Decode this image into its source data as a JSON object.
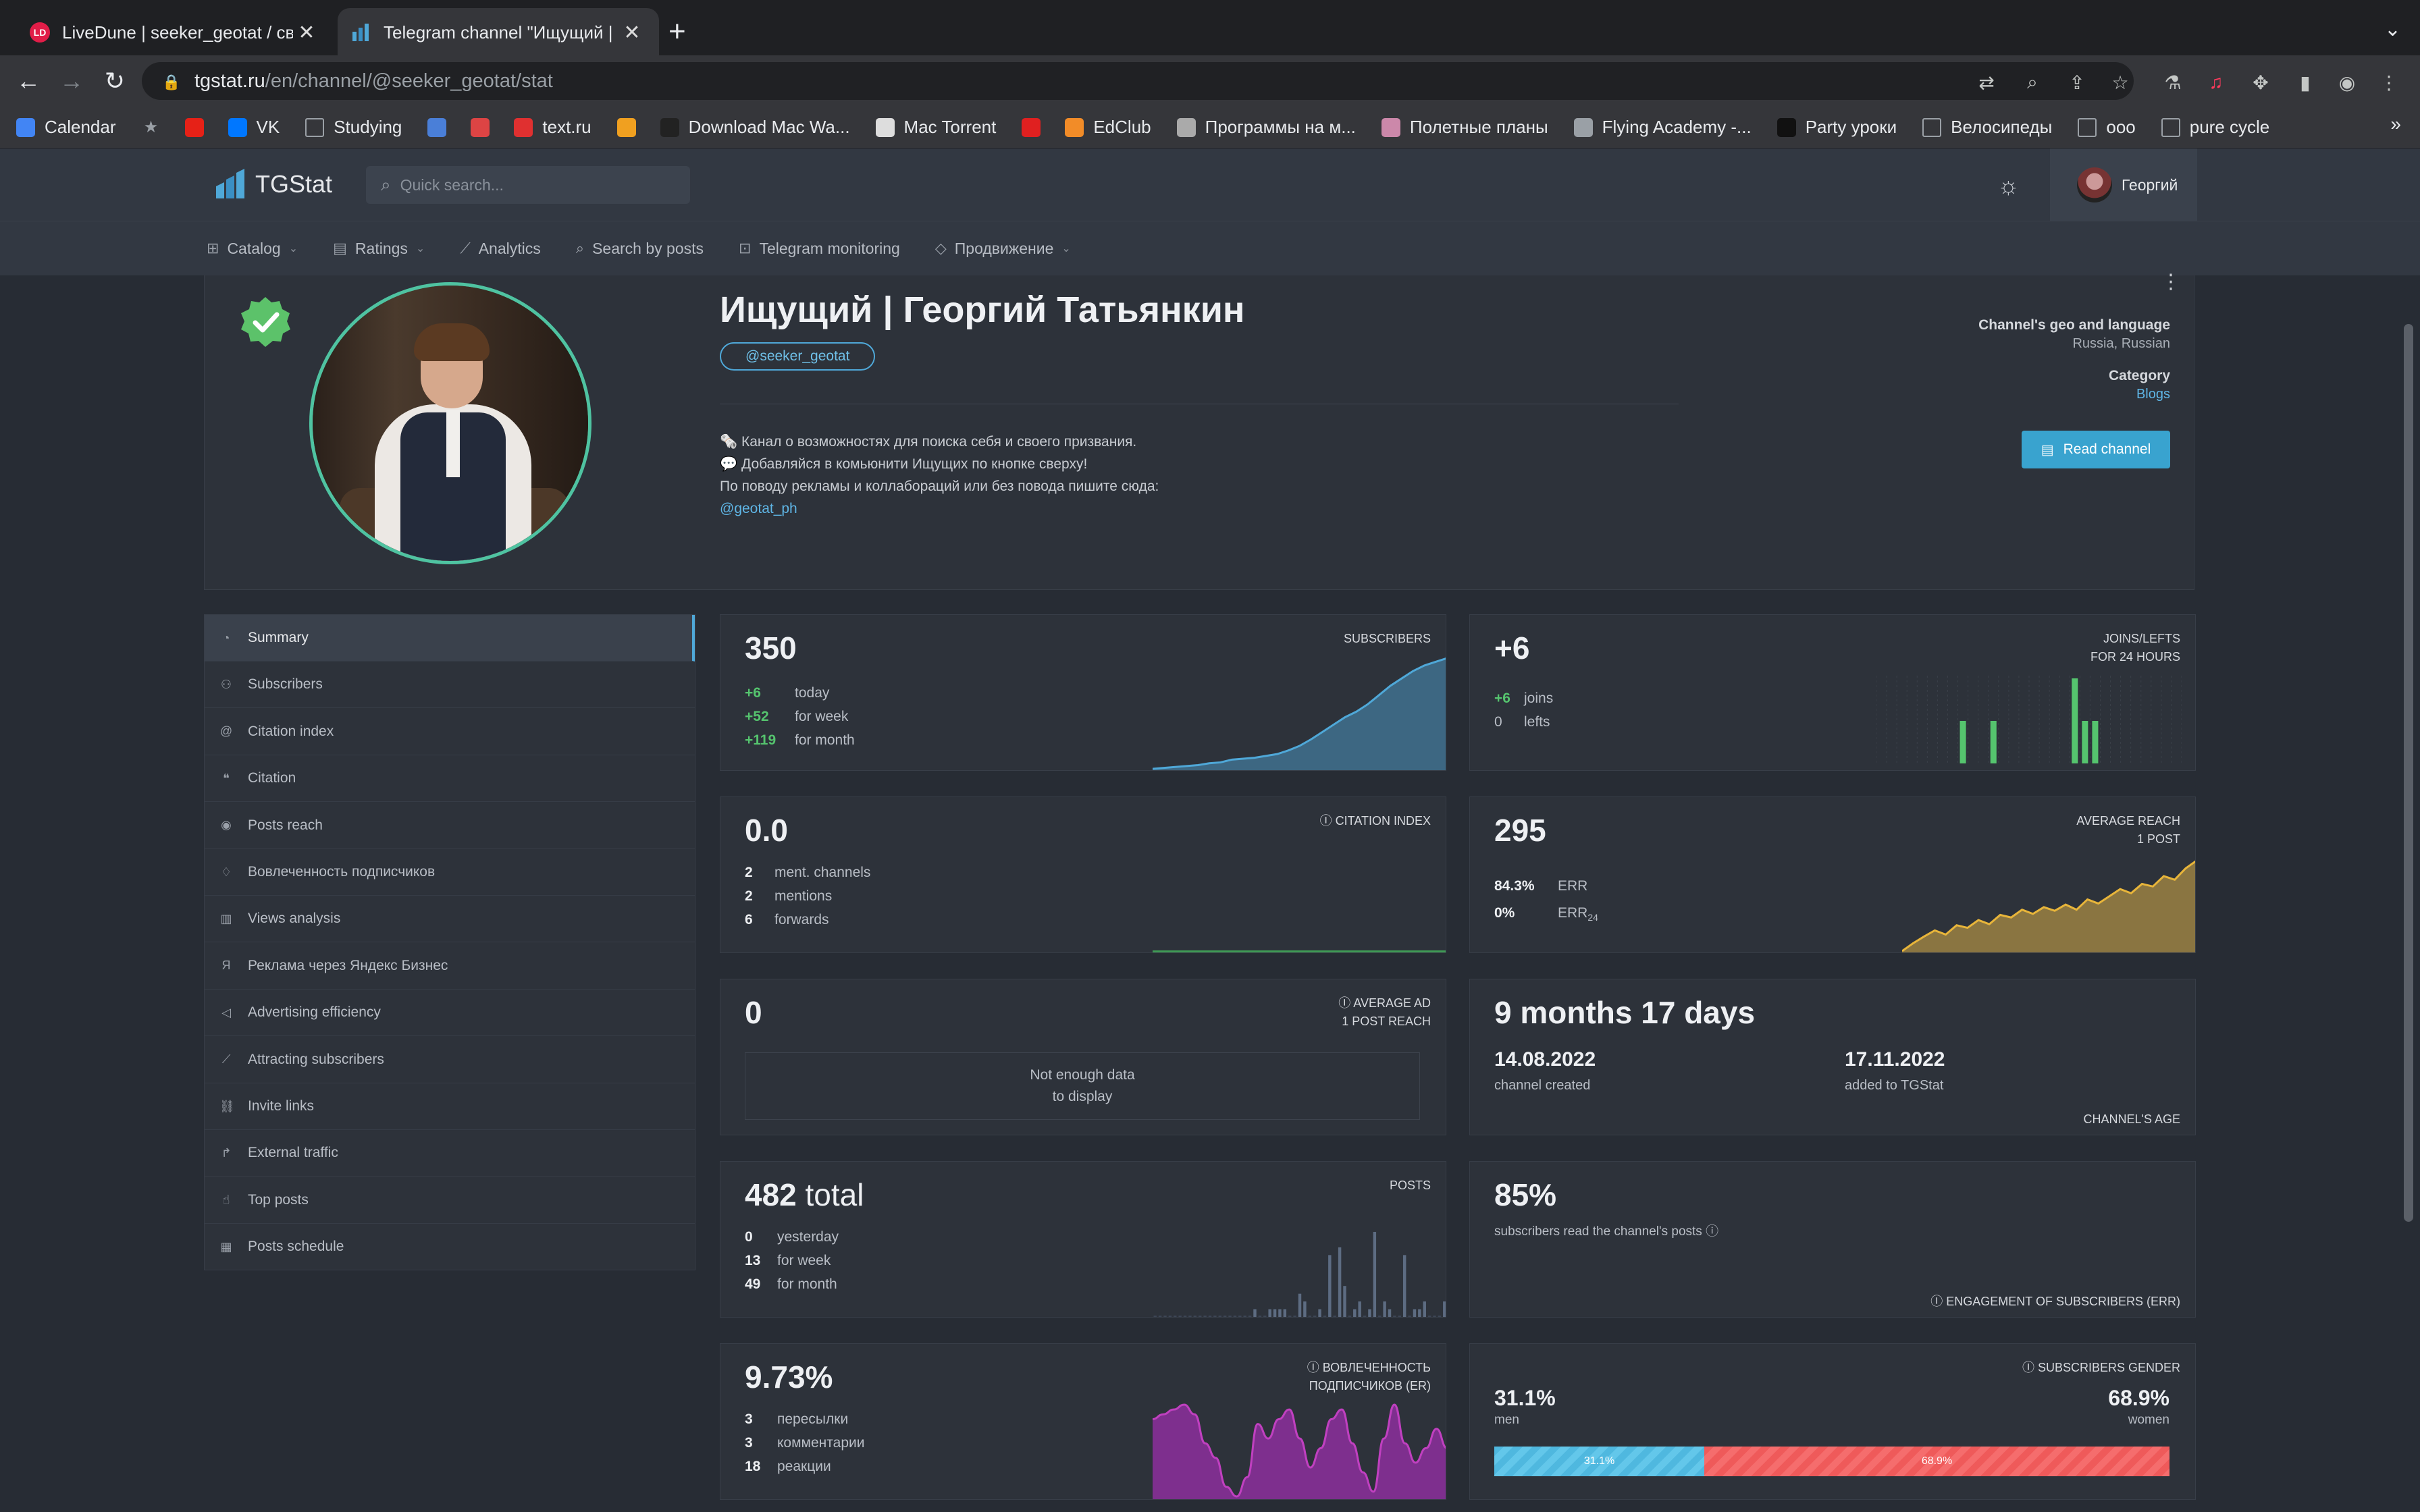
{
  "browser": {
    "tabs": [
      {
        "title": "LiveDune | seeker_geotat / сво...",
        "favicon": "LD",
        "active": false
      },
      {
        "title": "Telegram channel \"Ищущий | Г...",
        "favicon": "tgstat",
        "active": true
      }
    ],
    "url_host": "tgstat.ru",
    "url_path": "/en/channel/@seeker_geotat/stat",
    "bookmarks": [
      {
        "label": "Calendar",
        "icon": "calendar-icon",
        "color": "#4285f4"
      },
      {
        "label": "",
        "icon": "star-icon",
        "color": "#9aa0a6"
      },
      {
        "label": "",
        "icon": "youtube-icon",
        "color": "#e62117"
      },
      {
        "label": "VK",
        "icon": "vk-icon",
        "color": "#0077ff"
      },
      {
        "label": "Studying",
        "icon": "folder-icon",
        "color": "#9aa0a6"
      },
      {
        "label": "",
        "icon": "translate-icon",
        "color": "#4a7fd8"
      },
      {
        "label": "",
        "icon": "app-icon",
        "color": "#d44"
      },
      {
        "label": "text.ru",
        "icon": "textru-icon",
        "color": "#e03030"
      },
      {
        "label": "",
        "icon": "stack-icon",
        "color": "#f0a020"
      },
      {
        "label": "Download Mac Wa...",
        "icon": "download-icon",
        "color": "#222"
      },
      {
        "label": "Mac Torrent",
        "icon": "torrent-icon",
        "color": "#ddd"
      },
      {
        "label": "",
        "icon": "mail-icon",
        "color": "#e02020"
      },
      {
        "label": "EdClub",
        "icon": "edclub-icon",
        "color": "#f28c28"
      },
      {
        "label": "Программы на м...",
        "icon": "skull-icon",
        "color": "#aaa"
      },
      {
        "label": "Полетные планы",
        "icon": "plane-icon",
        "color": "#c8a"
      },
      {
        "label": "Flying Academy -...",
        "icon": "globe-icon",
        "color": "#9aa0a6"
      },
      {
        "label": "Party уроки",
        "icon": "party-icon",
        "color": "#111"
      },
      {
        "label": "Велосипеды",
        "icon": "folder-icon",
        "color": "#9aa0a6"
      },
      {
        "label": "ооо",
        "icon": "folder-icon",
        "color": "#9aa0a6"
      },
      {
        "label": "pure cycle",
        "icon": "folder-icon",
        "color": "#9aa0a6"
      }
    ],
    "more_label": "»"
  },
  "site": {
    "logo": "TGStat",
    "search_placeholder": "Quick search...",
    "user_name": "Георгий",
    "nav": [
      {
        "label": "Catalog",
        "icon": "grid-icon",
        "dropdown": true
      },
      {
        "label": "Ratings",
        "icon": "ratings-icon",
        "dropdown": true
      },
      {
        "label": "Analytics",
        "icon": "analytics-icon",
        "dropdown": false
      },
      {
        "label": "Search by posts",
        "icon": "search-icon",
        "dropdown": false
      },
      {
        "label": "Telegram monitoring",
        "icon": "monitor-icon",
        "dropdown": false
      },
      {
        "label": "Продвижение",
        "icon": "promo-icon",
        "dropdown": true
      }
    ]
  },
  "channel": {
    "title": "Ищущий | Георгий Татьянкин",
    "handle": "@seeker_geotat",
    "description": [
      "🗞️ Канал о возможностях для поиска себя и своего призвания.",
      "💬 Добавляйся в комьюнити Ищущих по кнопке сверху!",
      "По поводу рекламы и коллабораций или без повода пишите сюда:"
    ],
    "contact": "@geotat_ph",
    "geo_label": "Channel's geo and language",
    "geo_value": "Russia, Russian",
    "category_label": "Category",
    "category_value": "Blogs",
    "read_button": "Read channel"
  },
  "sidebar": [
    {
      "label": "Summary",
      "icon": "summary-icon",
      "active": true
    },
    {
      "label": "Subscribers",
      "icon": "users-icon"
    },
    {
      "label": "Citation index",
      "icon": "at-icon"
    },
    {
      "label": "Citation",
      "icon": "quote-icon"
    },
    {
      "label": "Posts reach",
      "icon": "eye-icon"
    },
    {
      "label": "Вовлеченность подписчиков",
      "icon": "engagement-icon"
    },
    {
      "label": "Views analysis",
      "icon": "bar-chart-icon"
    },
    {
      "label": "Реклама через Яндекс Бизнес",
      "icon": "yandex-icon"
    },
    {
      "label": "Advertising efficiency",
      "icon": "megaphone-icon"
    },
    {
      "label": "Attracting subscribers",
      "icon": "trend-icon"
    },
    {
      "label": "Invite links",
      "icon": "link-icon"
    },
    {
      "label": "External traffic",
      "icon": "share-icon"
    },
    {
      "label": "Top posts",
      "icon": "thumb-icon"
    },
    {
      "label": "Posts schedule",
      "icon": "calendar-icon"
    }
  ],
  "stats": {
    "subscribers": {
      "value": "350",
      "label": "SUBSCRIBERS",
      "rows": [
        {
          "n": "+6",
          "t": "today"
        },
        {
          "n": "+52",
          "t": "for week"
        },
        {
          "n": "+119",
          "t": "for month"
        }
      ],
      "spark": [
        230,
        231,
        232,
        233,
        234,
        236,
        237,
        240,
        241,
        242,
        244,
        246,
        250,
        255,
        262,
        270,
        278,
        286,
        292,
        300,
        310,
        320,
        328,
        336,
        342,
        346,
        350
      ]
    },
    "joins": {
      "value": "+6",
      "label1": "JOINS/LEFTS",
      "label2": "FOR 24 HOURS",
      "rows": [
        {
          "n": "+6",
          "t": "joins"
        },
        {
          "n": "0",
          "t": "lefts"
        }
      ],
      "bars": [
        0,
        0,
        0,
        0,
        0,
        0,
        0,
        0,
        1,
        0,
        0,
        1,
        0,
        0,
        0,
        0,
        0,
        0,
        0,
        2,
        1,
        1,
        0,
        0,
        0,
        0,
        0,
        0,
        0,
        0
      ]
    },
    "citation": {
      "value": "0.0",
      "label": "CITATION INDEX",
      "rows": [
        {
          "n": "2",
          "t": "ment. channels"
        },
        {
          "n": "2",
          "t": "mentions"
        },
        {
          "n": "6",
          "t": "forwards"
        }
      ]
    },
    "reach": {
      "value": "295",
      "label1": "AVERAGE REACH",
      "label2": "1 POST",
      "rows": [
        {
          "n": "84.3%",
          "t": "ERR"
        },
        {
          "n": "0%",
          "t": "ERR",
          "sub": "24"
        }
      ],
      "spark": [
        120,
        135,
        148,
        160,
        152,
        170,
        165,
        180,
        172,
        190,
        185,
        200,
        192,
        205,
        198,
        210,
        200,
        220,
        212,
        226,
        240,
        232,
        250,
        245,
        265,
        258,
        280,
        295
      ]
    },
    "avg_ad": {
      "value": "0",
      "label1": "AVERAGE AD",
      "label2": "1 POST REACH",
      "nodata1": "Not enough data",
      "nodata2": "to display"
    },
    "age": {
      "value": "9 months 17 days",
      "label": "CHANNEL'S AGE",
      "created": "14.08.2022",
      "created_label": "channel created",
      "added": "17.11.2022",
      "added_label": "added to TGStat"
    },
    "posts": {
      "value": "482",
      "value_suffix": "total",
      "label": "POSTS",
      "rows": [
        {
          "n": "0",
          "t": "yesterday"
        },
        {
          "n": "13",
          "t": "for week"
        },
        {
          "n": "49",
          "t": "for month"
        }
      ],
      "bars": [
        0,
        0,
        0,
        0,
        0,
        0,
        0,
        0,
        0,
        0,
        0,
        0,
        0,
        0,
        0,
        0,
        0,
        0,
        0,
        0,
        1,
        0,
        0,
        1,
        1,
        1,
        1,
        0,
        0,
        3,
        2,
        0,
        0,
        1,
        0,
        8,
        0,
        9,
        4,
        0,
        1,
        2,
        0,
        1,
        11,
        0,
        2,
        1,
        0,
        0,
        8,
        0,
        1,
        1,
        2,
        0,
        0,
        0,
        2
      ]
    },
    "err": {
      "value": "85%",
      "text": "subscribers read the channel's posts",
      "label": "ENGAGEMENT OF SUBSCRIBERS (ERR)"
    },
    "er": {
      "value": "9.73%",
      "label1": "ВОВЛЕЧЕННОСТЬ",
      "label2": "ПОДПИСЧИКОВ (ER)",
      "rows": [
        {
          "n": "3",
          "t": "пересылки"
        },
        {
          "n": "3",
          "t": "комментарии"
        },
        {
          "n": "18",
          "t": "реакции"
        }
      ],
      "spark": [
        18,
        19,
        20,
        21,
        19,
        13,
        10,
        4,
        2,
        6,
        17,
        14,
        18,
        20,
        14,
        8,
        12,
        18,
        20,
        13,
        7,
        3,
        14,
        21,
        13,
        9,
        12,
        16,
        12
      ]
    },
    "gender": {
      "label": "SUBSCRIBERS GENDER",
      "men_value": "31.1%",
      "men_label": "men",
      "men_pct": 31.1,
      "women_value": "68.9%",
      "women_label": "women",
      "women_pct": 68.9
    }
  },
  "colors": {
    "accent": "#4fa8d8",
    "green": "#55c46e",
    "reach": "#e8b53a",
    "er": "#b43ab0",
    "men": "#4fb8df",
    "women": "#ef5a5a"
  }
}
